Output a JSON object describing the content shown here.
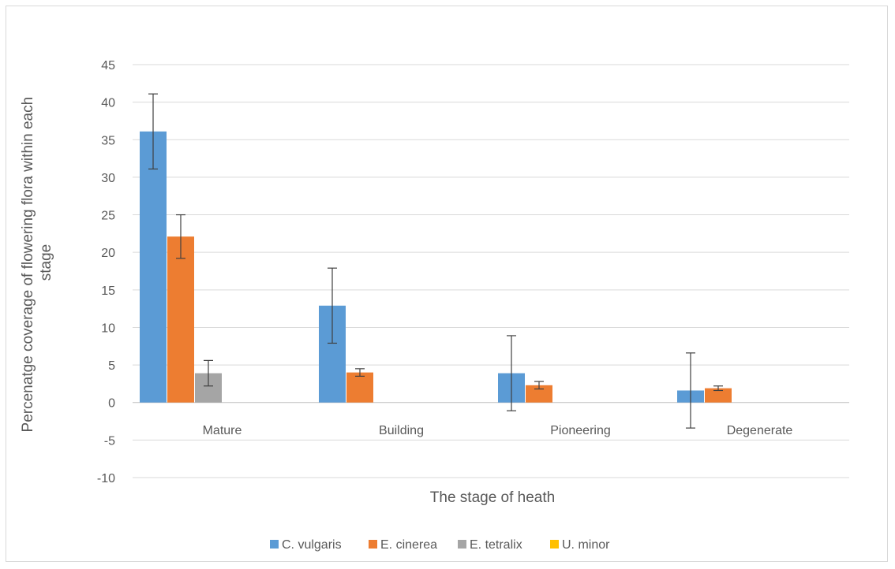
{
  "chart_data": {
    "type": "bar",
    "title": "",
    "xlabel": "The stage of heath",
    "ylabel": "Percenatge coverage of flowering flora within each stage",
    "ylabel_lines": [
      "Percenatge coverage of flowering flora within each",
      "stage"
    ],
    "ylim": [
      -10,
      45
    ],
    "ytick_step": 5,
    "grid": true,
    "legend_position": "bottom",
    "categories": [
      "Mature",
      "Building",
      "Pioneering",
      "Degenerate"
    ],
    "series": [
      {
        "name": "C. vulgaris",
        "color": "#5b9bd5",
        "values": [
          36.1,
          12.9,
          3.9,
          1.6
        ],
        "error": [
          5,
          5,
          5,
          5
        ]
      },
      {
        "name": "E. cinerea",
        "color": "#ed7d31",
        "values": [
          22.1,
          4.0,
          2.3,
          1.9
        ],
        "error": [
          2.9,
          0.5,
          0.5,
          0.3
        ]
      },
      {
        "name": "E. tetralix",
        "color": "#a5a5a5",
        "values": [
          3.9,
          0,
          0,
          0
        ],
        "error": [
          1.7,
          0,
          0,
          0
        ]
      },
      {
        "name": "U. minor",
        "color": "#ffc000",
        "values": [
          0,
          0,
          0,
          0
        ],
        "error": [
          0,
          0,
          0,
          0
        ]
      }
    ]
  }
}
